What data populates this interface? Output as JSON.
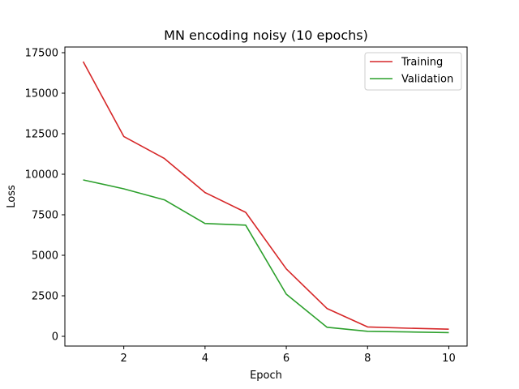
{
  "chart_data": {
    "type": "line",
    "title": "MN encoding noisy (10 epochs)",
    "xlabel": "Epoch",
    "ylabel": "Loss",
    "xlim": [
      0.55,
      10.45
    ],
    "ylim": [
      -600,
      17850
    ],
    "xticks": [
      2,
      4,
      6,
      8,
      10
    ],
    "yticks": [
      0,
      2500,
      5000,
      7500,
      10000,
      12500,
      15000,
      17500
    ],
    "grid": false,
    "legend_position": "top-right",
    "x": [
      1,
      2,
      3,
      4,
      5,
      6,
      7,
      8,
      9,
      10
    ],
    "series": [
      {
        "name": "Training",
        "color": "#d62728",
        "values": [
          16950,
          12330,
          10970,
          8870,
          7650,
          4160,
          1720,
          580,
          500,
          440
        ]
      },
      {
        "name": "Validation",
        "color": "#2ca02c",
        "values": [
          9650,
          9100,
          8420,
          6960,
          6860,
          2600,
          560,
          310,
          270,
          230
        ]
      }
    ]
  }
}
